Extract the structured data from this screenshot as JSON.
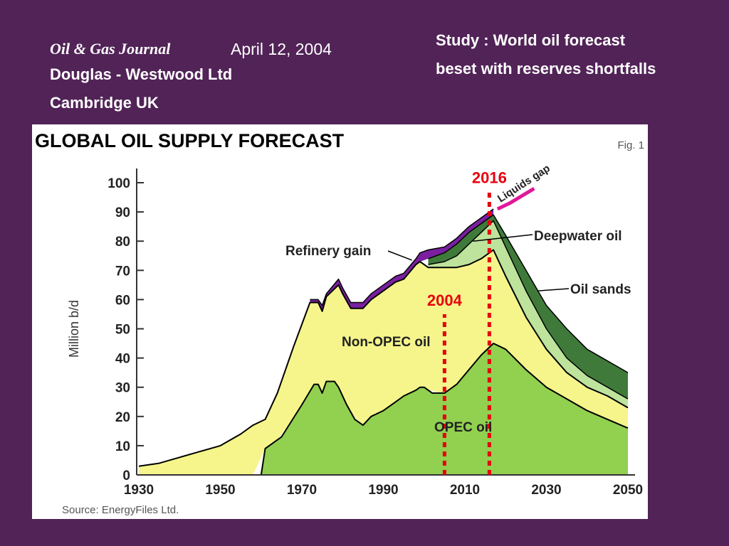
{
  "header": {
    "journal": "Oil & Gas Journal",
    "date": "April 12, 2004",
    "organization": "Douglas - Westwood Ltd",
    "location": "Cambridge  UK",
    "study_line1": "Study :  World oil forecast",
    "study_line2": "beset with reserves shortfalls"
  },
  "colors": {
    "background": "#512357",
    "opec": "#92d050",
    "non_opec": "#f5f58c",
    "deepwater": "#bde39c",
    "oil_sands": "#3f7a3a",
    "refinery_gain": "#7a1fa0",
    "liquids_gap": "#e0189a",
    "marker": "#e8000d",
    "title": "#1aa0a6"
  },
  "chart_data": {
    "type": "area",
    "title": "GLOBAL OIL SUPPLY FORECAST",
    "figure_label": "Fig. 1",
    "source": "Source: EnergyFiles Ltd.",
    "ylabel": "Million b/d",
    "xlabel": "",
    "xlim": [
      1930,
      2050
    ],
    "ylim": [
      0,
      100
    ],
    "x_ticks": [
      1930,
      1950,
      1970,
      1990,
      2010,
      2030,
      2050
    ],
    "y_ticks": [
      0,
      10,
      20,
      30,
      40,
      50,
      60,
      70,
      80,
      90,
      100
    ],
    "stacked_boundaries": {
      "opec": [
        [
          1960,
          0
        ],
        [
          1961,
          9
        ],
        [
          1965,
          13
        ],
        [
          1970,
          24
        ],
        [
          1973,
          31
        ],
        [
          1974,
          31
        ],
        [
          1975,
          28
        ],
        [
          1976,
          32
        ],
        [
          1978,
          32
        ],
        [
          1979,
          30
        ],
        [
          1981,
          24
        ],
        [
          1983,
          19
        ],
        [
          1985,
          17
        ],
        [
          1987,
          20
        ],
        [
          1990,
          22
        ],
        [
          1993,
          25
        ],
        [
          1995,
          27
        ],
        [
          1998,
          29
        ],
        [
          1999,
          30
        ],
        [
          2000,
          30
        ],
        [
          2002,
          28
        ],
        [
          2005,
          28
        ],
        [
          2008,
          31
        ],
        [
          2011,
          36
        ],
        [
          2014,
          41
        ],
        [
          2017,
          45
        ],
        [
          2020,
          43
        ],
        [
          2025,
          36
        ],
        [
          2030,
          30
        ],
        [
          2035,
          26
        ],
        [
          2040,
          22
        ],
        [
          2045,
          19
        ],
        [
          2050,
          16
        ]
      ],
      "non_opec": [
        [
          1930,
          3
        ],
        [
          1935,
          4
        ],
        [
          1940,
          6
        ],
        [
          1945,
          8
        ],
        [
          1950,
          10
        ],
        [
          1955,
          14
        ],
        [
          1958,
          17
        ],
        [
          1961,
          19
        ],
        [
          1964,
          28
        ],
        [
          1968,
          44
        ],
        [
          1972,
          59
        ],
        [
          1974,
          59
        ],
        [
          1975,
          56
        ],
        [
          1976,
          61
        ],
        [
          1979,
          65
        ],
        [
          1980,
          62
        ],
        [
          1982,
          57
        ],
        [
          1984,
          57
        ],
        [
          1985,
          57
        ],
        [
          1987,
          60
        ],
        [
          1990,
          63
        ],
        [
          1993,
          66
        ],
        [
          1995,
          67
        ],
        [
          1998,
          72
        ],
        [
          1999,
          73
        ],
        [
          2001,
          71
        ],
        [
          2005,
          71
        ],
        [
          2008,
          71
        ],
        [
          2011,
          72
        ],
        [
          2014,
          74
        ],
        [
          2017,
          77
        ],
        [
          2020,
          68
        ],
        [
          2025,
          54
        ],
        [
          2030,
          43
        ],
        [
          2035,
          35
        ],
        [
          2040,
          30
        ],
        [
          2045,
          27
        ],
        [
          2050,
          23
        ]
      ],
      "deepwater": [
        [
          2001,
          72
        ],
        [
          2005,
          73
        ],
        [
          2008,
          75
        ],
        [
          2011,
          79
        ],
        [
          2014,
          83
        ],
        [
          2017,
          87
        ],
        [
          2020,
          78
        ],
        [
          2025,
          63
        ],
        [
          2030,
          50
        ],
        [
          2035,
          40
        ],
        [
          2040,
          34
        ],
        [
          2045,
          30
        ],
        [
          2050,
          26
        ]
      ],
      "oil_sands": [
        [
          2001,
          74
        ],
        [
          2005,
          76
        ],
        [
          2008,
          79
        ],
        [
          2011,
          83
        ],
        [
          2014,
          86
        ],
        [
          2017,
          89
        ],
        [
          2020,
          82
        ],
        [
          2025,
          70
        ],
        [
          2030,
          58
        ],
        [
          2035,
          50
        ],
        [
          2040,
          43
        ],
        [
          2045,
          39
        ],
        [
          2050,
          35
        ]
      ],
      "refinery_gain": [
        [
          1972,
          60
        ],
        [
          1974,
          60
        ],
        [
          1975,
          58
        ],
        [
          1976,
          62
        ],
        [
          1979,
          67
        ],
        [
          1980,
          64
        ],
        [
          1982,
          59
        ],
        [
          1984,
          59
        ],
        [
          1985,
          59
        ],
        [
          1987,
          62
        ],
        [
          1990,
          65
        ],
        [
          1993,
          68
        ],
        [
          1995,
          69
        ],
        [
          1998,
          74
        ],
        [
          1999,
          76
        ],
        [
          2001,
          77
        ],
        [
          2005,
          78
        ],
        [
          2008,
          81
        ],
        [
          2011,
          85
        ],
        [
          2014,
          88
        ],
        [
          2017,
          91
        ]
      ],
      "liquids_gap": [
        [
          2018,
          91
        ],
        [
          2021,
          93
        ],
        [
          2024,
          95.5
        ],
        [
          2027,
          98
        ]
      ]
    },
    "labels": {
      "refinery_gain": "Refinery gain",
      "deepwater": "Deepwater oil",
      "oil_sands": "Oil sands",
      "non_opec": "Non-OPEC oil",
      "opec": "OPEC oil",
      "liquids_gap": "Liquids gap"
    },
    "markers": [
      {
        "label": "2004",
        "x": 2005
      },
      {
        "label": "2016",
        "x": 2016
      }
    ]
  }
}
